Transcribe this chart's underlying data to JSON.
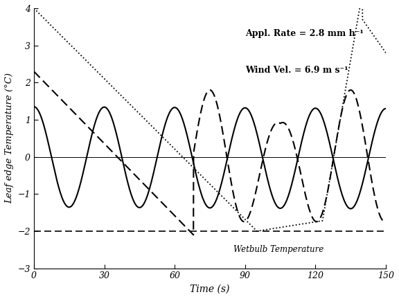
{
  "title": "",
  "xlabel": "Time (s)",
  "ylabel": "Leaf edge Temperature (°C)",
  "xlim": [
    0,
    150
  ],
  "ylim": [
    -3,
    4
  ],
  "yticks": [
    -3,
    -2,
    -1,
    0,
    1,
    2,
    3,
    4
  ],
  "xticks": [
    0,
    30,
    60,
    90,
    120,
    150
  ],
  "wetbulb_y": -2.0,
  "wetbulb_label": "Wetbulb Temperature",
  "annotation1": "Appl. Rate = 2.8 mm h⁻¹",
  "annotation2": "Wind Vel. = 6.9 m s⁻¹",
  "figsize": [
    5.76,
    4.32
  ],
  "dpi": 100
}
